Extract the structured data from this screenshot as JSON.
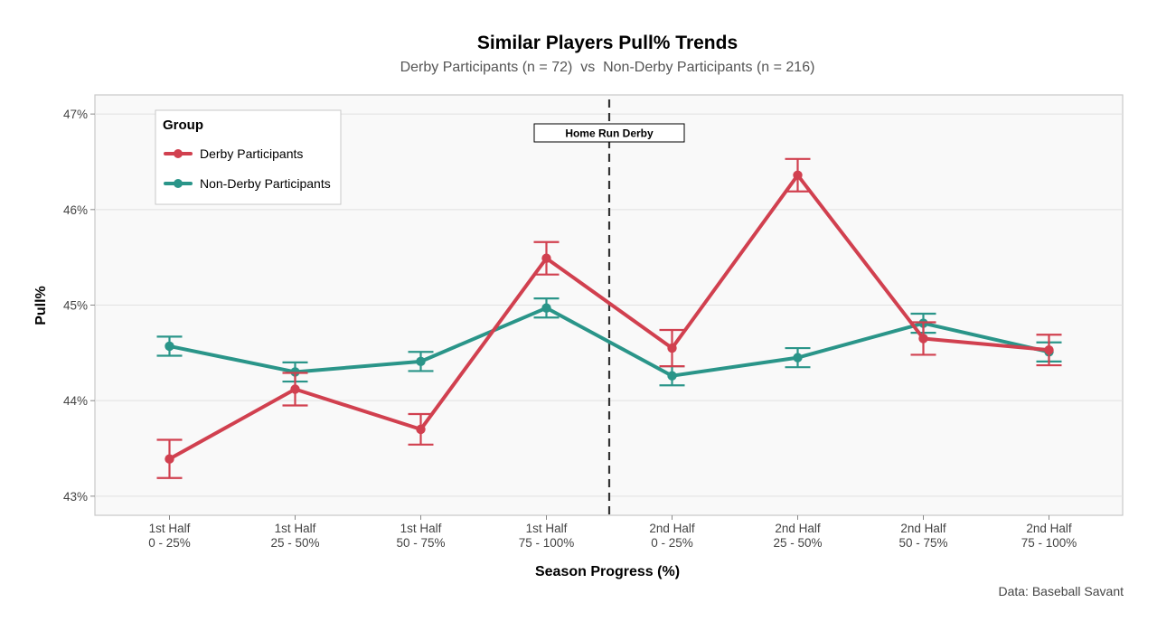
{
  "chart_data": {
    "type": "line",
    "title": "Similar Players Pull% Trends",
    "subtitle": "Derby Participants (n = 72)  vs  Non-Derby Participants (n = 216)",
    "xlabel": "Season Progress (%)",
    "ylabel": "Pull%",
    "categories": [
      [
        "1st Half",
        "0 - 25%"
      ],
      [
        "1st Half",
        "25 - 50%"
      ],
      [
        "1st Half",
        "50 - 75%"
      ],
      [
        "1st Half",
        "75 - 100%"
      ],
      [
        "2nd Half",
        "0 - 25%"
      ],
      [
        "2nd Half",
        "25 - 50%"
      ],
      [
        "2nd Half",
        "50 - 75%"
      ],
      [
        "2nd Half",
        "75 - 100%"
      ]
    ],
    "ylim": [
      42.8,
      47.2
    ],
    "yticks": [
      43,
      44,
      45,
      46,
      47
    ],
    "ytick_labels": [
      "43%",
      "44%",
      "45%",
      "46%",
      "47%"
    ],
    "grid": true,
    "legend": {
      "title": "Group",
      "placement": "top-left"
    },
    "series": [
      {
        "name": "Derby Participants",
        "color": "#d1404f",
        "values": [
          43.39,
          44.12,
          43.7,
          45.49,
          44.55,
          46.36,
          44.65,
          44.53
        ],
        "err_low": [
          43.19,
          43.95,
          43.54,
          45.32,
          44.36,
          46.19,
          44.48,
          44.37
        ],
        "err_high": [
          43.59,
          44.29,
          43.86,
          45.66,
          44.74,
          46.53,
          44.82,
          44.69
        ]
      },
      {
        "name": "Non-Derby Participants",
        "color": "#2a9589",
        "values": [
          44.57,
          44.3,
          44.41,
          44.97,
          44.26,
          44.45,
          44.81,
          44.51
        ],
        "err_low": [
          44.47,
          44.2,
          44.31,
          44.87,
          44.16,
          44.35,
          44.71,
          44.41
        ],
        "err_high": [
          44.67,
          44.4,
          44.51,
          45.07,
          44.36,
          44.55,
          44.91,
          44.61
        ]
      }
    ],
    "annotation": {
      "label": "Home Run Derby",
      "between_categories": [
        3,
        4
      ]
    },
    "caption": "Data: Baseball Savant"
  }
}
